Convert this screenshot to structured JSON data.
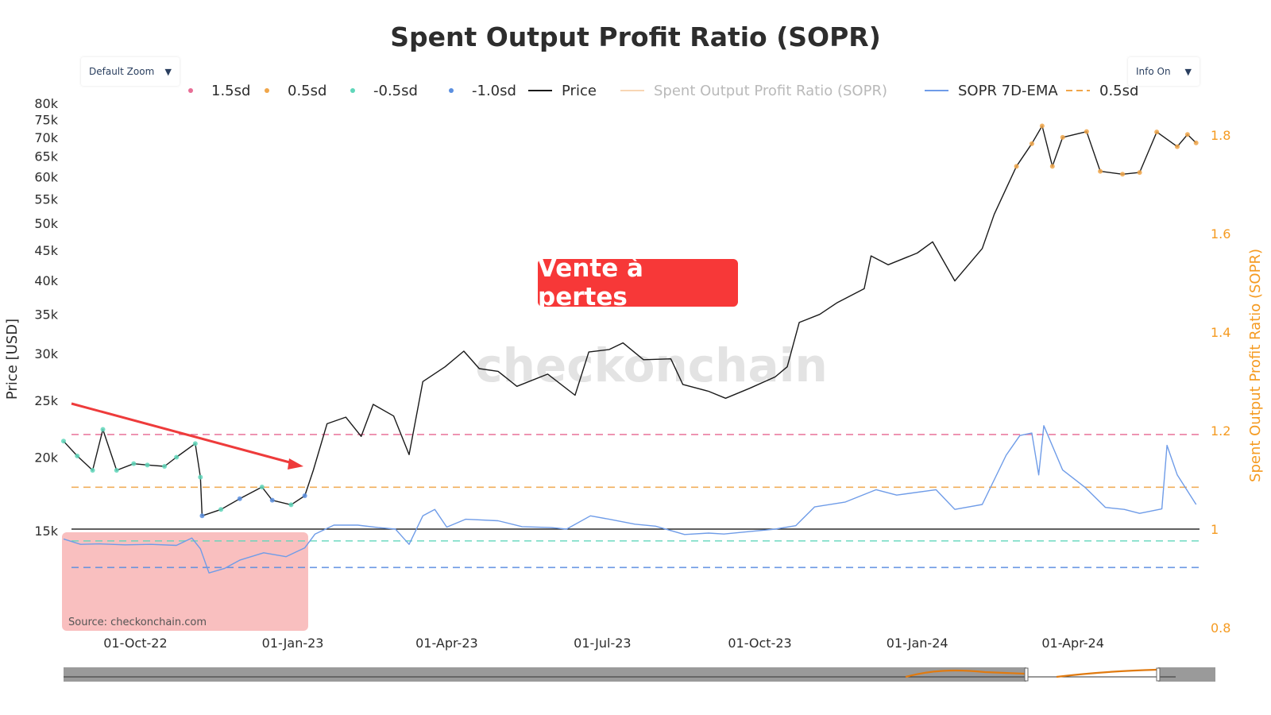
{
  "controls": {
    "zoom_label": "Default Zoom",
    "info_label": "Info On"
  },
  "annotation": {
    "text": "Vente à pertes",
    "color": "#f73838"
  },
  "source_text": "Source: checkonchain.com",
  "watermark": "checkonchain",
  "colors": {
    "price": "#1a1a1a",
    "sopr_ema": "#6f9ce8",
    "sd_1_5": "#e86e96",
    "sd_0_5": "#f0a64a",
    "sd_neg_0_5": "#5fd6ba",
    "sd_neg_1_0": "#5b8fe0",
    "sopr_axis": "#f59b22",
    "loss_zone": "#f9bcbc",
    "arrow": "#ee3b3b"
  },
  "chart_data": {
    "type": "line",
    "title": "Spent Output Profit Ratio (SOPR)",
    "xlabel": "",
    "ylabel_left": "Price [USD]",
    "ylabel_right": "Spent Output Profit Ratio (SOPR)",
    "x_tick_labels": [
      "01-Oct-22",
      "01-Jan-23",
      "01-Apr-23",
      "01-Jul-23",
      "01-Oct-23",
      "01-Jan-24",
      "01-Apr-24"
    ],
    "y_left_scale": "log",
    "y_left_ticks": [
      "80k",
      "75k",
      "70k",
      "65k",
      "60k",
      "55k",
      "50k",
      "45k",
      "40k",
      "35k",
      "30k",
      "25k",
      "20k",
      "15k"
    ],
    "y_left_tick_values": [
      80000,
      75000,
      70000,
      65000,
      60000,
      55000,
      50000,
      45000,
      40000,
      35000,
      30000,
      25000,
      20000,
      15000
    ],
    "y_right_ticks": [
      "1.8",
      "1.6",
      "1.4",
      "1.2",
      "1",
      "0.8"
    ],
    "y_right_tick_values": [
      1.8,
      1.6,
      1.4,
      1.2,
      1.0,
      0.8
    ],
    "y_right_range": [
      0.8,
      1.8
    ],
    "legend": {
      "placement": "top",
      "entries": [
        {
          "label": "1.5sd",
          "kind": "dot",
          "color": "#e86e96"
        },
        {
          "label": "0.5sd",
          "kind": "dot",
          "color": "#f0a64a"
        },
        {
          "label": "-0.5sd",
          "kind": "dot",
          "color": "#5fd6ba"
        },
        {
          "label": "-1.0sd",
          "kind": "dot",
          "color": "#5b8fe0"
        },
        {
          "label": "Price",
          "kind": "line",
          "color": "#1a1a1a"
        },
        {
          "label": "Spent Output Profit Ratio (SOPR)",
          "kind": "line",
          "color": "#f8d6b4",
          "faded": true
        },
        {
          "label": "SOPR 7D-EMA",
          "kind": "line",
          "color": "#6f9ce8"
        },
        {
          "label": "0.5sd",
          "kind": "dash",
          "color": "#f0a64a"
        }
      ]
    },
    "reference_lines": [
      {
        "name": "1.5sd",
        "y": 1.192,
        "color": "#e86e96"
      },
      {
        "name": "0.5sd",
        "y": 1.085,
        "color": "#f0a64a"
      },
      {
        "name": "-0.5sd",
        "y": 0.976,
        "color": "#5fd6ba"
      },
      {
        "name": "-1.0sd",
        "y": 0.922,
        "color": "#5b8fe0"
      },
      {
        "name": "baseline",
        "y": 1.0,
        "color": "#000000"
      }
    ],
    "highlight_period": {
      "from": "2022-08-20",
      "to": "2023-01-10"
    },
    "series": [
      {
        "name": "Price",
        "axis": "left",
        "points": [
          [
            "2022-08-20",
            21300
          ],
          [
            "2022-08-28",
            20100
          ],
          [
            "2022-09-06",
            19000
          ],
          [
            "2022-09-12",
            22300
          ],
          [
            "2022-09-20",
            19000
          ],
          [
            "2022-09-30",
            19500
          ],
          [
            "2022-10-08",
            19400
          ],
          [
            "2022-10-18",
            19300
          ],
          [
            "2022-10-25",
            20000
          ],
          [
            "2022-11-05",
            21100
          ],
          [
            "2022-11-08",
            18500
          ],
          [
            "2022-11-09",
            15900
          ],
          [
            "2022-11-20",
            16300
          ],
          [
            "2022-12-01",
            17000
          ],
          [
            "2022-12-14",
            17800
          ],
          [
            "2022-12-20",
            16900
          ],
          [
            "2022-12-31",
            16600
          ],
          [
            "2023-01-08",
            17200
          ],
          [
            "2023-01-13",
            19000
          ],
          [
            "2023-01-21",
            22800
          ],
          [
            "2023-02-01",
            23400
          ],
          [
            "2023-02-10",
            21700
          ],
          [
            "2023-02-17",
            24600
          ],
          [
            "2023-03-01",
            23500
          ],
          [
            "2023-03-10",
            20200
          ],
          [
            "2023-03-18",
            26900
          ],
          [
            "2023-03-31",
            28500
          ],
          [
            "2023-04-11",
            30300
          ],
          [
            "2023-04-20",
            28300
          ],
          [
            "2023-05-01",
            28000
          ],
          [
            "2023-05-12",
            26400
          ],
          [
            "2023-05-30",
            27700
          ],
          [
            "2023-06-15",
            25500
          ],
          [
            "2023-06-23",
            30200
          ],
          [
            "2023-07-05",
            30500
          ],
          [
            "2023-07-13",
            31300
          ],
          [
            "2023-07-25",
            29300
          ],
          [
            "2023-08-10",
            29400
          ],
          [
            "2023-08-17",
            26600
          ],
          [
            "2023-09-01",
            25900
          ],
          [
            "2023-09-11",
            25200
          ],
          [
            "2023-09-25",
            26200
          ],
          [
            "2023-10-10",
            27400
          ],
          [
            "2023-10-17",
            28500
          ],
          [
            "2023-10-24",
            33900
          ],
          [
            "2023-11-05",
            35000
          ],
          [
            "2023-11-15",
            36600
          ],
          [
            "2023-12-01",
            38700
          ],
          [
            "2023-12-05",
            44000
          ],
          [
            "2023-12-15",
            42500
          ],
          [
            "2024-01-01",
            44500
          ],
          [
            "2024-01-10",
            46500
          ],
          [
            "2024-01-23",
            39900
          ],
          [
            "2024-02-08",
            45300
          ],
          [
            "2024-02-15",
            51800
          ],
          [
            "2024-02-28",
            62500
          ],
          [
            "2024-03-08",
            68300
          ],
          [
            "2024-03-14",
            73200
          ],
          [
            "2024-03-20",
            62500
          ],
          [
            "2024-03-26",
            70000
          ],
          [
            "2024-04-09",
            71600
          ],
          [
            "2024-04-17",
            61300
          ],
          [
            "2024-04-30",
            60600
          ],
          [
            "2024-05-10",
            61000
          ],
          [
            "2024-05-20",
            71500
          ],
          [
            "2024-06-01",
            67500
          ],
          [
            "2024-06-07",
            70800
          ],
          [
            "2024-06-12",
            68500
          ]
        ]
      },
      {
        "name": "SOPR 7D-EMA",
        "axis": "right",
        "points": [
          [
            "2022-08-20",
            0.98
          ],
          [
            "2022-08-30",
            0.969
          ],
          [
            "2022-09-10",
            0.97
          ],
          [
            "2022-09-25",
            0.968
          ],
          [
            "2022-10-10",
            0.969
          ],
          [
            "2022-10-25",
            0.967
          ],
          [
            "2022-11-03",
            0.982
          ],
          [
            "2022-11-08",
            0.96
          ],
          [
            "2022-11-13",
            0.911
          ],
          [
            "2022-11-22",
            0.92
          ],
          [
            "2022-12-01",
            0.937
          ],
          [
            "2022-12-15",
            0.952
          ],
          [
            "2022-12-28",
            0.944
          ],
          [
            "2023-01-08",
            0.962
          ],
          [
            "2023-01-14",
            0.99
          ],
          [
            "2023-01-25",
            1.008
          ],
          [
            "2023-02-08",
            1.008
          ],
          [
            "2023-02-20",
            1.003
          ],
          [
            "2023-03-02",
            1.0
          ],
          [
            "2023-03-10",
            0.969
          ],
          [
            "2023-03-18",
            1.027
          ],
          [
            "2023-03-25",
            1.04
          ],
          [
            "2023-04-01",
            1.004
          ],
          [
            "2023-04-12",
            1.02
          ],
          [
            "2023-05-01",
            1.017
          ],
          [
            "2023-05-15",
            1.005
          ],
          [
            "2023-06-01",
            1.003
          ],
          [
            "2023-06-10",
            1.0
          ],
          [
            "2023-06-24",
            1.027
          ],
          [
            "2023-07-05",
            1.02
          ],
          [
            "2023-07-20",
            1.01
          ],
          [
            "2023-08-01",
            1.006
          ],
          [
            "2023-08-18",
            0.989
          ],
          [
            "2023-09-01",
            0.992
          ],
          [
            "2023-09-10",
            0.99
          ],
          [
            "2023-09-25",
            0.995
          ],
          [
            "2023-10-10",
            1.0
          ],
          [
            "2023-10-22",
            1.007
          ],
          [
            "2023-11-02",
            1.045
          ],
          [
            "2023-11-20",
            1.055
          ],
          [
            "2023-12-08",
            1.08
          ],
          [
            "2023-12-20",
            1.069
          ],
          [
            "2024-01-12",
            1.08
          ],
          [
            "2024-01-23",
            1.04
          ],
          [
            "2024-02-08",
            1.05
          ],
          [
            "2024-02-22",
            1.15
          ],
          [
            "2024-03-01",
            1.19
          ],
          [
            "2024-03-08",
            1.195
          ],
          [
            "2024-03-12",
            1.11
          ],
          [
            "2024-03-15",
            1.21
          ],
          [
            "2024-03-26",
            1.12
          ],
          [
            "2024-04-08",
            1.085
          ],
          [
            "2024-04-20",
            1.044
          ],
          [
            "2024-05-01",
            1.04
          ],
          [
            "2024-05-10",
            1.032
          ],
          [
            "2024-05-23",
            1.041
          ],
          [
            "2024-05-26",
            1.17
          ],
          [
            "2024-06-01",
            1.11
          ],
          [
            "2024-06-12",
            1.05
          ]
        ]
      }
    ]
  }
}
